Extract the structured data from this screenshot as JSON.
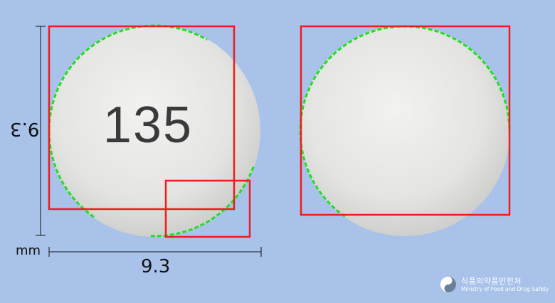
{
  "pill": {
    "imprint_front": "135",
    "color": "#e8e8e6"
  },
  "dimensions": {
    "width": "9.3",
    "height": "9.3",
    "unit": "mm"
  },
  "logo": {
    "korean_text": "식품의약품안전처",
    "english_text": "Ministry of Food and Drug Safety"
  },
  "colors": {
    "background": "#a8c2ea",
    "bbox_outline": "#ee1c1c",
    "contour_points": "#22dd22"
  }
}
